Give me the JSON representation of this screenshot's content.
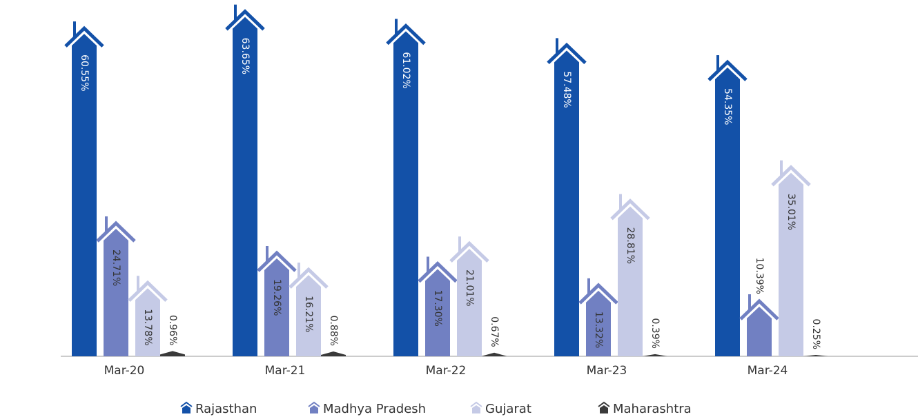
{
  "chart_data": {
    "type": "bar",
    "categories": [
      "Mar-20",
      "Mar-21",
      "Mar-22",
      "Mar-23",
      "Mar-24"
    ],
    "series": [
      {
        "name": "Rajasthan",
        "color": "#1351a8",
        "values": [
          60.55,
          63.65,
          61.02,
          57.48,
          54.35
        ],
        "value_labels": [
          "60.55%",
          "63.65%",
          "61.02%",
          "57.48%",
          "54.35%"
        ]
      },
      {
        "name": "Madhya Pradesh",
        "color": "#7180c2",
        "values": [
          24.71,
          19.26,
          17.3,
          13.32,
          10.39
        ],
        "value_labels": [
          "24.71%",
          "19.26%",
          "17.30%",
          "13.32%",
          "10.39%"
        ]
      },
      {
        "name": "Gujarat",
        "color": "#c5cae6",
        "values": [
          13.78,
          16.21,
          21.01,
          28.81,
          35.01
        ],
        "value_labels": [
          "13.78%",
          "16.21%",
          "21.01%",
          "28.81%",
          "35.01%"
        ]
      },
      {
        "name": "Maharashtra",
        "color": "#3a3a3a",
        "values": [
          0.96,
          0.88,
          0.67,
          0.39,
          0.25
        ],
        "value_labels": [
          "0.96%",
          "0.88%",
          "0.67%",
          "0.39%",
          "0.25%"
        ]
      }
    ],
    "ylim": [
      0,
      65
    ]
  }
}
